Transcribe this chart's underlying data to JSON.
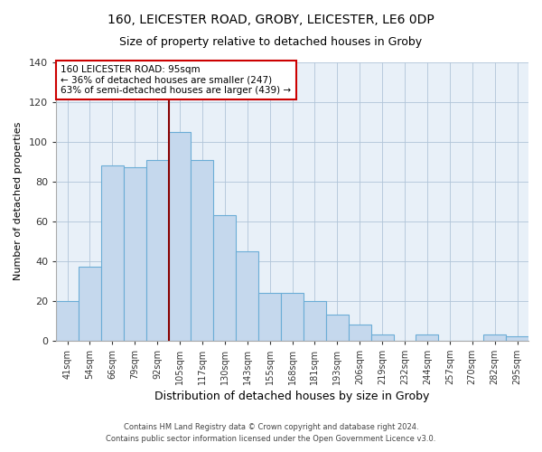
{
  "title1": "160, LEICESTER ROAD, GROBY, LEICESTER, LE6 0DP",
  "title2": "Size of property relative to detached houses in Groby",
  "xlabel": "Distribution of detached houses by size in Groby",
  "ylabel": "Number of detached properties",
  "categories": [
    "41sqm",
    "54sqm",
    "66sqm",
    "79sqm",
    "92sqm",
    "105sqm",
    "117sqm",
    "130sqm",
    "143sqm",
    "155sqm",
    "168sqm",
    "181sqm",
    "193sqm",
    "206sqm",
    "219sqm",
    "232sqm",
    "244sqm",
    "257sqm",
    "270sqm",
    "282sqm",
    "295sqm"
  ],
  "values": [
    20,
    37,
    88,
    87,
    91,
    105,
    91,
    63,
    45,
    24,
    24,
    20,
    13,
    8,
    3,
    0,
    3,
    0,
    0,
    3,
    2
  ],
  "bar_color": "#c5d8ed",
  "bar_edge_color": "#6badd6",
  "plot_bg_color": "#e8f0f8",
  "ylim": [
    0,
    140
  ],
  "yticks": [
    0,
    20,
    40,
    60,
    80,
    100,
    120,
    140
  ],
  "property_line_x": 4.5,
  "annotation_title": "160 LEICESTER ROAD: 95sqm",
  "annotation_line1": "← 36% of detached houses are smaller (247)",
  "annotation_line2": "63% of semi-detached houses are larger (439) →",
  "box_edge_color": "#cc0000",
  "line_color": "#880000",
  "footer1": "Contains HM Land Registry data © Crown copyright and database right 2024.",
  "footer2": "Contains public sector information licensed under the Open Government Licence v3.0."
}
